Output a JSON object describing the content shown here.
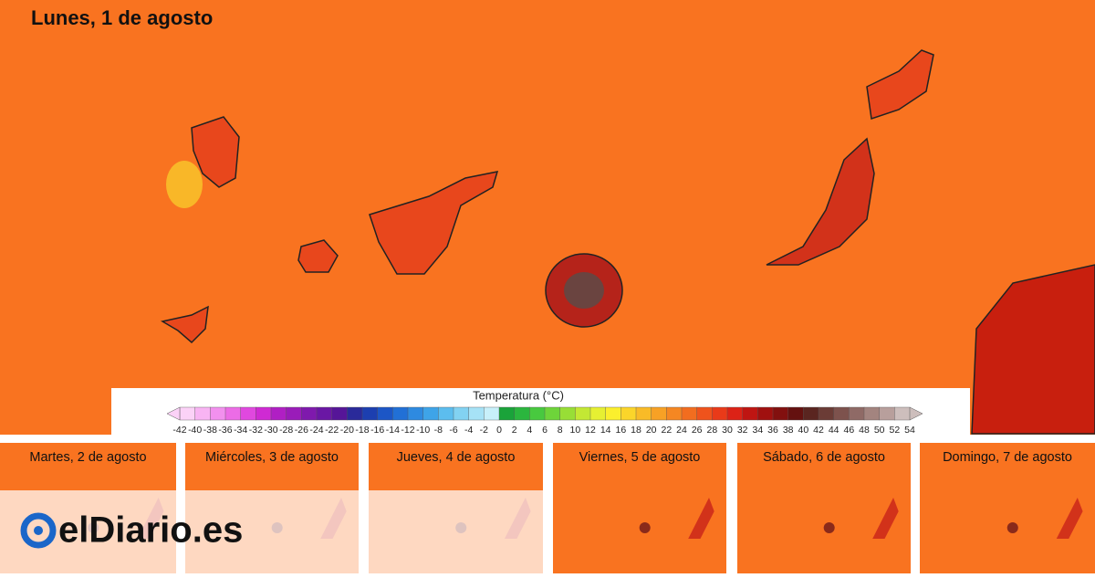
{
  "header": {
    "title": "Lunes, 1 de agosto"
  },
  "legend": {
    "title": "Temperatura (°C)",
    "ticks": [
      -42,
      -40,
      -38,
      -36,
      -34,
      -32,
      -30,
      -28,
      -26,
      -24,
      -22,
      -20,
      -18,
      -16,
      -14,
      -12,
      -10,
      -8,
      -6,
      -4,
      -2,
      0,
      2,
      4,
      6,
      8,
      10,
      12,
      14,
      16,
      18,
      20,
      22,
      24,
      26,
      28,
      30,
      32,
      34,
      36,
      38,
      40,
      42,
      44,
      46,
      48,
      50,
      52,
      54
    ],
    "colors": [
      "#fbd2f7",
      "#f8b4f3",
      "#f290ee",
      "#ec6ce6",
      "#e048df",
      "#cf2ad3",
      "#b01fc4",
      "#9a1cb9",
      "#7f19ad",
      "#6a17a4",
      "#561598",
      "#2a2a9a",
      "#1c3fb0",
      "#1c56c6",
      "#2170d6",
      "#2e8ae0",
      "#3ea4e8",
      "#5cbdee",
      "#82d2f2",
      "#a6e2f6",
      "#c8f0fa",
      "#1aa33a",
      "#2bb63e",
      "#48c93f",
      "#6ed43a",
      "#98de36",
      "#c3e834",
      "#e6f032",
      "#fbef2d",
      "#fbd52a",
      "#f9bb27",
      "#f7a125",
      "#f58722",
      "#f26d1f",
      "#ef531c",
      "#e93a19",
      "#dc2216",
      "#bf1512",
      "#a0100f",
      "#82100f",
      "#64110f",
      "#5a2520",
      "#6b3c36",
      "#7d524d",
      "#8f6a66",
      "#a3847f",
      "#b89f9c",
      "#cdbebc"
    ]
  },
  "panels": [
    {
      "label": "Martes, 2 de agosto"
    },
    {
      "label": "Miércoles, 3 de agosto"
    },
    {
      "label": "Jueves, 4 de agosto"
    },
    {
      "label": "Viernes, 5 de agosto"
    },
    {
      "label": "Sábado, 6 de agosto"
    },
    {
      "label": "Domingo, 7 de agosto"
    }
  ],
  "brand": {
    "name": "elDiario.es"
  }
}
